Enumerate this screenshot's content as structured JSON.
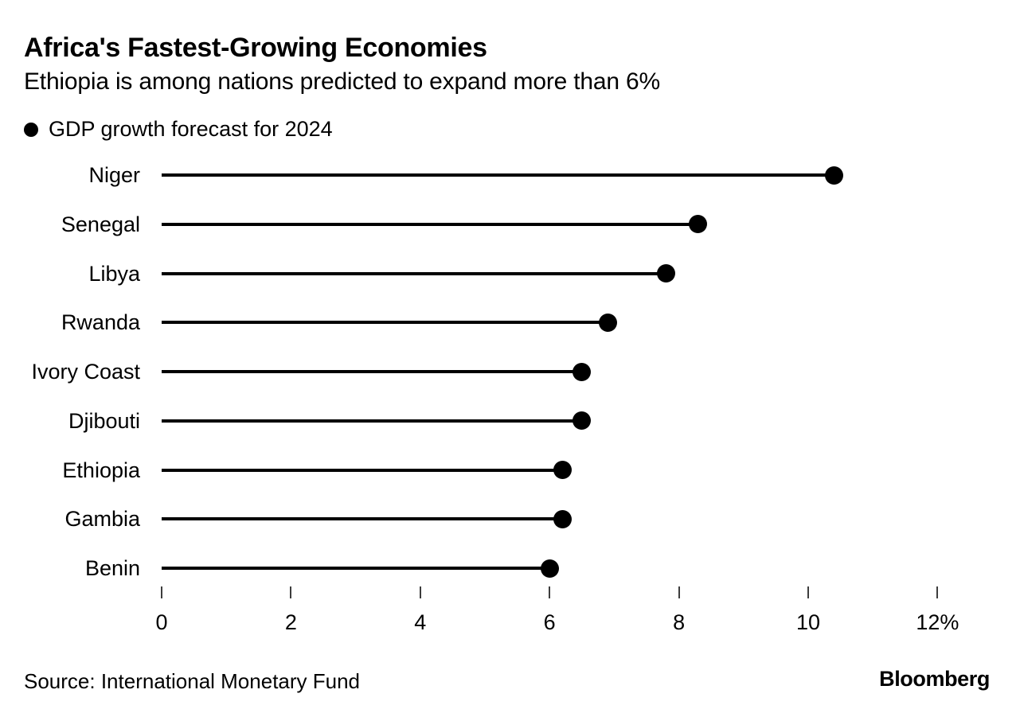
{
  "chart_data": {
    "type": "bar",
    "variant": "horizontal-lollipop",
    "title": "Africa's Fastest-Growing Economies",
    "subtitle": "Ethiopia is among nations predicted to expand more than 6%",
    "legend_label": "GDP growth forecast for 2024",
    "categories": [
      "Niger",
      "Senegal",
      "Libya",
      "Rwanda",
      "Ivory Coast",
      "Djibouti",
      "Ethiopia",
      "Gambia",
      "Benin"
    ],
    "values": [
      10.4,
      8.3,
      7.8,
      6.9,
      6.5,
      6.5,
      6.2,
      6.2,
      6.0
    ],
    "unit": "%",
    "xlabel": "",
    "ylabel": "",
    "xlim": [
      0,
      12
    ],
    "x_ticks": [
      0,
      2,
      4,
      6,
      8,
      10,
      12
    ],
    "x_tick_labels": [
      "0",
      "2",
      "4",
      "6",
      "8",
      "10",
      "12%"
    ],
    "grid": false,
    "legend_position": "top-left"
  },
  "footer": {
    "source": "Source: International Monetary Fund",
    "brand": "Bloomberg"
  },
  "colors": {
    "foreground": "#000000",
    "background": "#ffffff",
    "axis_tick": "#3d3d3d"
  }
}
